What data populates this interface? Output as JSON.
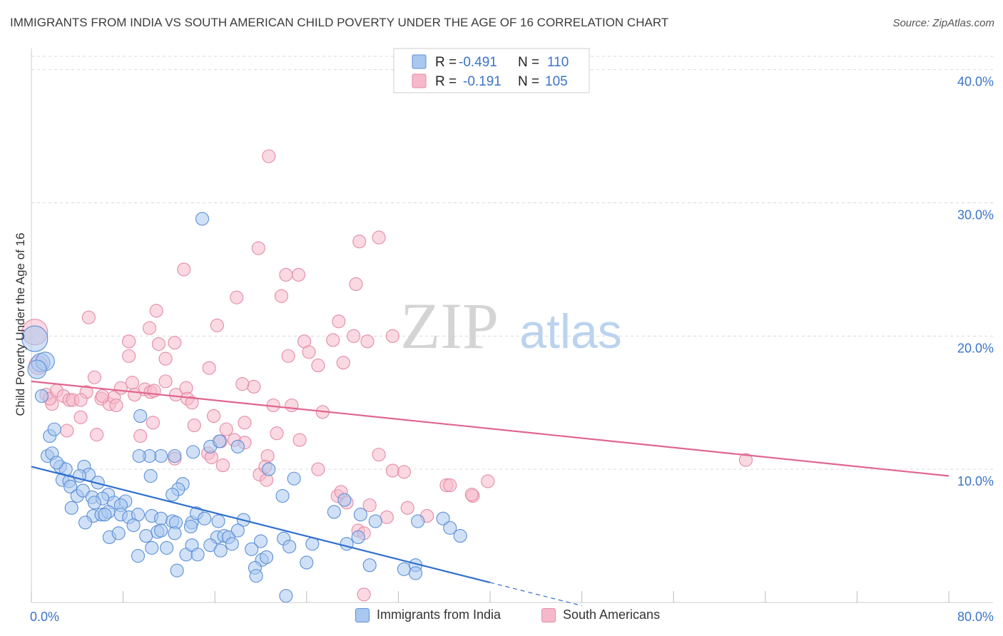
{
  "title": "IMMIGRANTS FROM INDIA VS SOUTH AMERICAN CHILD POVERTY UNDER THE AGE OF 16 CORRELATION CHART",
  "source": "Source: ZipAtlas.com",
  "watermark": {
    "zip": "ZIP",
    "atlas": "atlas"
  },
  "colors": {
    "blue_fill": "#a9c8f0",
    "blue_stroke": "#5b8fd6",
    "blue_line": "#2f6fce",
    "pink_fill": "#f6b9cb",
    "pink_stroke": "#e58aa6",
    "pink_line": "#e0658e",
    "axis_text": "#3a74c9",
    "grid": "#d9d9d9"
  },
  "stats_legend": {
    "rows": [
      {
        "r_label": "R =",
        "r_value": "-0.491",
        "n_label": "N =",
        "n_value": "110"
      },
      {
        "r_label": "R =",
        "r_value": "-0.191",
        "n_label": "N =",
        "n_value": "105"
      }
    ]
  },
  "legend": {
    "blue_label": "Immigrants from India",
    "pink_label": "South Americans"
  },
  "chart_data": {
    "type": "scatter",
    "title": "IMMIGRANTS FROM INDIA VS SOUTH AMERICAN CHILD POVERTY UNDER THE AGE OF 16 CORRELATION CHART",
    "xlabel": "",
    "ylabel": "Child Poverty Under the Age of 16",
    "xlim": [
      0,
      80
    ],
    "ylim": [
      0,
      41
    ],
    "x_tick_labels": [
      "0.0%",
      "80.0%"
    ],
    "y_ticks": [
      10,
      20,
      30,
      40
    ],
    "y_tick_labels": [
      "10.0%",
      "20.0%",
      "30.0%",
      "40.0%"
    ],
    "grid": true,
    "legend_position": "bottom",
    "series": [
      {
        "name": "Immigrants from India",
        "r": -0.491,
        "n": 110,
        "trend": {
          "x0": 0,
          "y0": 10.2,
          "x1": 40,
          "y1": 1.5,
          "dash_to_x": 48
        },
        "points": [
          [
            0.3,
            19.8
          ],
          [
            0.8,
            18
          ],
          [
            1.2,
            18.1
          ],
          [
            0.5,
            17.5
          ],
          [
            0.9,
            15.5
          ],
          [
            1.6,
            12.5
          ],
          [
            2,
            13
          ],
          [
            1.4,
            11
          ],
          [
            1.8,
            11.2
          ],
          [
            2.5,
            10.2
          ],
          [
            3,
            10
          ],
          [
            2.2,
            10.5
          ],
          [
            2.7,
            9.2
          ],
          [
            3.3,
            9.1
          ],
          [
            4.6,
            10.2
          ],
          [
            5,
            9.6
          ],
          [
            4.2,
            9.5
          ],
          [
            3.4,
            8.7
          ],
          [
            4,
            8
          ],
          [
            4.5,
            8.4
          ],
          [
            3.5,
            7.1
          ],
          [
            5.3,
            7.9
          ],
          [
            5.8,
            9
          ],
          [
            6.7,
            8.1
          ],
          [
            6.2,
            7.8
          ],
          [
            7.2,
            7.5
          ],
          [
            8.2,
            7.6
          ],
          [
            7.8,
            7.3
          ],
          [
            5.5,
            7.5
          ],
          [
            5.4,
            6.5
          ],
          [
            6.1,
            6.6
          ],
          [
            6.7,
            6.8
          ],
          [
            6.4,
            6.6
          ],
          [
            7.8,
            6.6
          ],
          [
            8.5,
            6.4
          ],
          [
            9.3,
            6.6
          ],
          [
            10.5,
            6.5
          ],
          [
            11.3,
            6.3
          ],
          [
            12.3,
            6.1
          ],
          [
            12.6,
            6
          ],
          [
            14,
            6
          ],
          [
            14.4,
            6.7
          ],
          [
            15.1,
            6.3
          ],
          [
            16.3,
            6.1
          ],
          [
            18.5,
            6.2
          ],
          [
            4.7,
            6
          ],
          [
            6.8,
            4.9
          ],
          [
            7.6,
            5.2
          ],
          [
            8.9,
            5.8
          ],
          [
            10,
            5
          ],
          [
            11,
            5.3
          ],
          [
            11.3,
            5.4
          ],
          [
            12.5,
            5.2
          ],
          [
            13.9,
            5.7
          ],
          [
            16.2,
            4.9
          ],
          [
            16.8,
            5
          ],
          [
            17.2,
            4.9
          ],
          [
            18,
            5.4
          ],
          [
            20,
            4.6
          ],
          [
            22,
            4.8
          ],
          [
            24.5,
            4.4
          ],
          [
            27.5,
            4.4
          ],
          [
            28.5,
            4.9
          ],
          [
            9.3,
            3.5
          ],
          [
            10.5,
            4.1
          ],
          [
            11.8,
            4.1
          ],
          [
            13.5,
            3.6
          ],
          [
            14,
            4.3
          ],
          [
            14.5,
            3.6
          ],
          [
            15.6,
            4.3
          ],
          [
            16.5,
            3.9
          ],
          [
            17.5,
            4.4
          ],
          [
            19.2,
            4
          ],
          [
            20.1,
            3.2
          ],
          [
            20.5,
            3.4
          ],
          [
            22.5,
            4.2
          ],
          [
            24,
            3
          ],
          [
            29.5,
            2.8
          ],
          [
            32.5,
            2.5
          ],
          [
            33.5,
            2.8
          ],
          [
            12.7,
            2.4
          ],
          [
            19.5,
            2.6
          ],
          [
            19.6,
            2
          ],
          [
            22.2,
            0.5
          ],
          [
            33.5,
            2.2
          ],
          [
            30,
            6.1
          ],
          [
            28.7,
            6.6
          ],
          [
            33.7,
            6.1
          ],
          [
            35.9,
            6.3
          ],
          [
            36.5,
            5.6
          ],
          [
            37.4,
            5
          ],
          [
            26.4,
            6.8
          ],
          [
            27.3,
            7.7
          ],
          [
            15.6,
            11.7
          ],
          [
            11.3,
            11
          ],
          [
            10.3,
            11
          ],
          [
            9.4,
            11
          ],
          [
            12.5,
            11
          ],
          [
            10.4,
            9.5
          ],
          [
            13.2,
            8.9
          ],
          [
            12.8,
            8.5
          ],
          [
            12.3,
            8.1
          ],
          [
            22.9,
            9.3
          ],
          [
            21.9,
            8
          ],
          [
            9.5,
            14
          ],
          [
            14.9,
            28.8
          ],
          [
            18,
            11.7
          ],
          [
            16.4,
            12.1
          ],
          [
            20.7,
            10
          ],
          [
            14.1,
            11.3
          ]
        ]
      },
      {
        "name": "South Americans",
        "r": -0.191,
        "n": 105,
        "trend": {
          "x0": 0,
          "y0": 16.6,
          "x1": 80,
          "y1": 9.5
        },
        "points": [
          [
            0.3,
            20.3
          ],
          [
            0.6,
            17.8
          ],
          [
            1.3,
            15.6
          ],
          [
            1.8,
            14.9
          ],
          [
            1.6,
            15.3
          ],
          [
            2.2,
            15.9
          ],
          [
            2.8,
            15.5
          ],
          [
            3.3,
            15.2
          ],
          [
            3.6,
            15.2
          ],
          [
            4.3,
            13.9
          ],
          [
            4.8,
            15.8
          ],
          [
            5.5,
            16.9
          ],
          [
            6.1,
            15.3
          ],
          [
            6.8,
            14.9
          ],
          [
            7.2,
            15.4
          ],
          [
            7.8,
            16.1
          ],
          [
            8.5,
            18.5
          ],
          [
            8.8,
            16.5
          ],
          [
            9,
            15.6
          ],
          [
            9.5,
            12.5
          ],
          [
            5,
            21.4
          ],
          [
            3.1,
            12.9
          ],
          [
            5.7,
            12.6
          ],
          [
            9.9,
            16
          ],
          [
            10.4,
            15.8
          ],
          [
            10.6,
            13.5
          ],
          [
            11.7,
            16.6
          ],
          [
            12.6,
            15.6
          ],
          [
            13.5,
            16.1
          ],
          [
            14.2,
            13.3
          ],
          [
            15.4,
            11.2
          ],
          [
            15.9,
            14
          ],
          [
            16.5,
            12.1
          ],
          [
            17.7,
            12.2
          ],
          [
            18.6,
            13.5
          ],
          [
            19.4,
            16.2
          ],
          [
            20.6,
            11
          ],
          [
            21.1,
            14.8
          ],
          [
            22.7,
            14.8
          ],
          [
            23.4,
            12.2
          ],
          [
            25.4,
            14.3
          ],
          [
            26.7,
            8
          ],
          [
            27.5,
            7.5
          ],
          [
            28.5,
            5.4
          ],
          [
            29.5,
            7.3
          ],
          [
            31.5,
            9.9
          ],
          [
            32.5,
            9.8
          ],
          [
            32.8,
            7.1
          ],
          [
            34.5,
            6.5
          ],
          [
            36.2,
            8.8
          ],
          [
            38.5,
            8
          ],
          [
            39.8,
            9.1
          ],
          [
            6.2,
            15.5
          ],
          [
            8.5,
            19.6
          ],
          [
            10.3,
            20.6
          ],
          [
            10.9,
            21.9
          ],
          [
            11.7,
            18.3
          ],
          [
            12.5,
            19.5
          ],
          [
            13.3,
            25
          ],
          [
            15.5,
            17.6
          ],
          [
            16.2,
            20.8
          ],
          [
            17.9,
            22.9
          ],
          [
            18.4,
            16.4
          ],
          [
            19.8,
            26.6
          ],
          [
            20.7,
            33.5
          ],
          [
            21.8,
            23
          ],
          [
            22.2,
            24.6
          ],
          [
            22.4,
            18.5
          ],
          [
            23.8,
            19.6
          ],
          [
            24.2,
            18.8
          ],
          [
            25,
            17.8
          ],
          [
            26.3,
            19.7
          ],
          [
            26.8,
            21.1
          ],
          [
            27.2,
            18
          ],
          [
            28.1,
            20
          ],
          [
            28.3,
            23.9
          ],
          [
            28.6,
            27.1
          ],
          [
            29.3,
            19.6
          ],
          [
            30.3,
            27.4
          ],
          [
            31.5,
            20
          ],
          [
            29,
            5.2
          ],
          [
            29,
            0.6
          ],
          [
            36.5,
            8.8
          ],
          [
            19.9,
            9.6
          ],
          [
            20.5,
            9.2
          ],
          [
            15.7,
            10.9
          ],
          [
            18.6,
            12
          ],
          [
            16.7,
            10.3
          ],
          [
            12.5,
            10.8
          ],
          [
            25,
            10
          ],
          [
            27,
            8.3
          ],
          [
            30.3,
            11.1
          ],
          [
            38.4,
            8.1
          ],
          [
            31,
            6.4
          ],
          [
            11.1,
            19.4
          ],
          [
            23.3,
            24.6
          ],
          [
            62.3,
            10.7
          ],
          [
            20.4,
            10.2
          ],
          [
            4.3,
            15.2
          ],
          [
            7.4,
            14.8
          ],
          [
            10.7,
            15.9
          ],
          [
            13.6,
            15.3
          ],
          [
            17,
            13
          ],
          [
            14,
            15
          ],
          [
            21.4,
            12.7
          ]
        ]
      }
    ]
  }
}
